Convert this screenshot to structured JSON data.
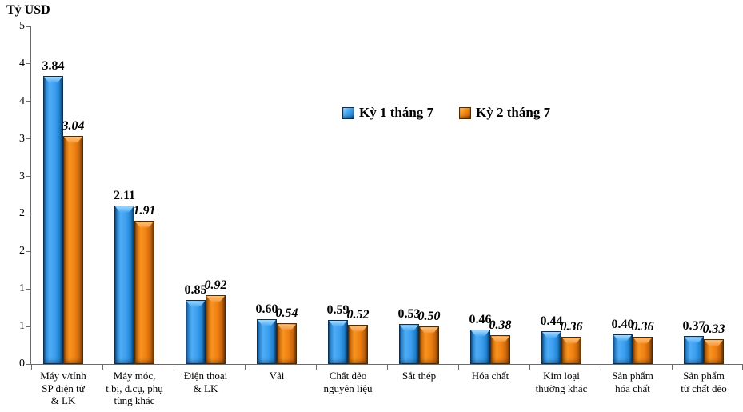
{
  "chart_data": {
    "type": "bar",
    "title": "",
    "ylabel": "Tỷ USD",
    "xlabel": "",
    "ylim": [
      0,
      4.5
    ],
    "ytick_values": [
      0,
      0.5,
      1,
      1.5,
      2,
      2.5,
      3,
      3.5,
      4,
      4.5
    ],
    "ytick_labels_bottom_to_top": [
      "0",
      "1",
      "1",
      "2",
      "2",
      "3",
      "3",
      "4",
      "4",
      "5"
    ],
    "grid": false,
    "legend_position": "top-center",
    "categories": [
      "Máy v/tính\nSP điện tử\n& LK",
      "Máy móc,\nt.bị, d.cụ, phụ\ntùng khác",
      "Điện thoại\n& LK",
      "Vải",
      "Chất dẻo\nnguyên liệu",
      "Sắt thép",
      "Hóa chất",
      "Kim loại\nthường khác",
      "Sản phẩm\nhóa chất",
      "Sản phẩm\ntừ chất dẻo"
    ],
    "series": [
      {
        "name": "Kỳ 1 tháng 7",
        "color": "#3B9EF0",
        "label_style": "bold",
        "values": [
          3.84,
          2.11,
          0.85,
          0.6,
          0.59,
          0.53,
          0.46,
          0.44,
          0.4,
          0.37
        ],
        "labels": [
          "3.84",
          "2.11",
          "0.85",
          "0.60",
          "0.59",
          "0.53",
          "0.46",
          "0.44",
          "0.40",
          "0.37"
        ]
      },
      {
        "name": "Kỳ 2 tháng 7",
        "color": "#EF7F12",
        "label_style": "bold-italic",
        "values": [
          3.04,
          1.91,
          0.92,
          0.54,
          0.52,
          0.5,
          0.38,
          0.36,
          0.36,
          0.33
        ],
        "labels": [
          "3.04",
          "1.91",
          "0.92",
          "0.54",
          "0.52",
          "0.50",
          "0.38",
          "0.36",
          "0.36",
          "0.33"
        ]
      }
    ]
  }
}
